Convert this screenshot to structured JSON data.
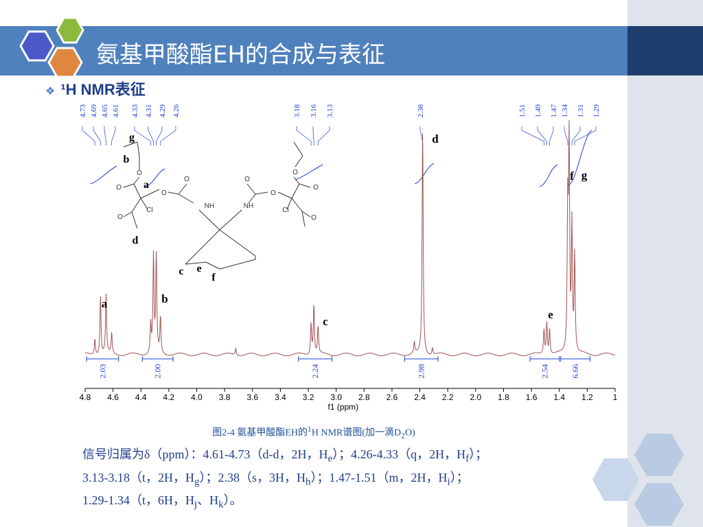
{
  "slide": {
    "title": "氨基甲酸酯EH的合成与表征",
    "subtitle": "¹H NMR表征",
    "caption_prefix": "图2-4  氨基甲酸酯EH的",
    "caption_sup": "1",
    "caption_mid": "H NMR谱图(加一滴D",
    "caption_sub": "2",
    "caption_end": "O)"
  },
  "assignment_lines": [
    [
      {
        "t": "信号归属为δ（ppm）：4.61-4.73（d-d，2H，H"
      },
      {
        "t": "e",
        "sub": true
      },
      {
        "t": "）；4.26-4.33（q，2H，H"
      },
      {
        "t": "f",
        "sub": true
      },
      {
        "t": "）；"
      }
    ],
    [
      {
        "t": "3.13-3.18（t，2H，H"
      },
      {
        "t": "g",
        "sub": true
      },
      {
        "t": "）；2.38（s，3H，H"
      },
      {
        "t": "h",
        "sub": true
      },
      {
        "t": "）；1.47-1.51（m，2H，H"
      },
      {
        "t": "i",
        "sub": true
      },
      {
        "t": "）；"
      }
    ],
    [
      {
        "t": "1.29-1.34（t，6H，H"
      },
      {
        "t": "j",
        "sub": true
      },
      {
        "t": "、H"
      },
      {
        "t": "k",
        "sub": true
      },
      {
        "t": "）。"
      }
    ]
  ],
  "chart_data": {
    "type": "line",
    "xlabel": "f1 (ppm)",
    "xlim": [
      4.8,
      1.0
    ],
    "x_reversed": true,
    "x_ticks": [
      "4.8",
      "4.6",
      "4.4",
      "4.2",
      "4.0",
      "3.8",
      "3.6",
      "3.4",
      "3.2",
      "3.0",
      "2.8",
      "2.6",
      "2.4",
      "2.2",
      "2.0",
      "1.8",
      "1.6",
      "1.4",
      "1.2",
      "1"
    ],
    "peak_list": [
      {
        "group": [
          "4.73",
          "4.69",
          "4.65",
          "4.61"
        ],
        "from_ppm": 4.78,
        "to_ppm": 4.56
      },
      {
        "group": [
          "4.33",
          "4.31",
          "4.29",
          "4.26"
        ],
        "from_ppm": 4.45,
        "to_ppm": 4.19
      },
      {
        "group": [
          "3.18",
          "3.16",
          "3.13"
        ],
        "from_ppm": 3.4,
        "to_ppm": 3.05
      },
      {
        "group": [
          "2.38"
        ],
        "from_ppm": 2.4,
        "to_ppm": 2.4
      },
      {
        "group": [
          "1.51",
          "1.49",
          "1.47"
        ],
        "from_ppm": 1.7,
        "to_ppm": 1.53
      },
      {
        "group": [
          "1.34",
          "1.31",
          "1.29"
        ],
        "from_ppm": 1.47,
        "to_ppm": 1.3
      }
    ],
    "peaks": [
      {
        "ppm": 4.73,
        "h": 0.07
      },
      {
        "ppm": 4.69,
        "h": 0.26
      },
      {
        "ppm": 4.65,
        "h": 0.26
      },
      {
        "ppm": 4.61,
        "h": 0.09
      },
      {
        "ppm": 4.33,
        "h": 0.13
      },
      {
        "ppm": 4.31,
        "h": 0.43
      },
      {
        "ppm": 4.29,
        "h": 0.43
      },
      {
        "ppm": 4.26,
        "h": 0.16
      },
      {
        "ppm": 3.18,
        "h": 0.14
      },
      {
        "ppm": 3.16,
        "h": 0.22
      },
      {
        "ppm": 3.13,
        "h": 0.12
      },
      {
        "ppm": 3.72,
        "h": 0.03
      },
      {
        "ppm": 2.38,
        "h": 1.0
      },
      {
        "ppm": 2.44,
        "h": 0.05
      },
      {
        "ppm": 2.31,
        "h": 0.03
      },
      {
        "ppm": 1.51,
        "h": 0.11
      },
      {
        "ppm": 1.49,
        "h": 0.14
      },
      {
        "ppm": 1.47,
        "h": 0.11
      },
      {
        "ppm": 1.34,
        "h": 0.61
      },
      {
        "ppm": 1.33,
        "h": 0.91
      },
      {
        "ppm": 1.31,
        "h": 0.56
      },
      {
        "ppm": 1.29,
        "h": 0.43
      }
    ],
    "peak_labels": [
      {
        "label": "a",
        "ppm": 4.67
      },
      {
        "label": "b",
        "ppm": 4.24
      },
      {
        "label": "c",
        "ppm": 3.09
      },
      {
        "label": "d",
        "ppm": 2.3
      },
      {
        "label": "e",
        "ppm": 1.49
      },
      {
        "label": "f",
        "ppm": 1.38
      },
      {
        "label": "g",
        "ppm": 1.3
      }
    ],
    "integrals": [
      {
        "value": "2.03",
        "from_ppm": 4.79,
        "to_ppm": 4.56
      },
      {
        "value": "2.00",
        "from_ppm": 4.39,
        "to_ppm": 4.17
      },
      {
        "value": "2.24",
        "from_ppm": 3.27,
        "to_ppm": 3.03
      },
      {
        "value": "2.98",
        "from_ppm": 2.51,
        "to_ppm": 2.27
      },
      {
        "value": "2.54",
        "from_ppm": 1.61,
        "to_ppm": 1.4
      },
      {
        "value": "6.66",
        "from_ppm": 1.39,
        "to_ppm": 1.18
      }
    ],
    "structure_labels": [
      "g",
      "b",
      "a",
      "d",
      "c",
      "e",
      "f"
    ],
    "structure_atoms": [
      "O",
      "O",
      "O",
      "O",
      "O",
      "O",
      "O",
      "O",
      "O",
      "O",
      "O",
      "NH",
      "NH",
      "Cl",
      "Cl"
    ],
    "colors": {
      "trace": "#a05050",
      "annotation": "#1a3fd8",
      "structure": "#333333",
      "label": "#000000"
    }
  }
}
